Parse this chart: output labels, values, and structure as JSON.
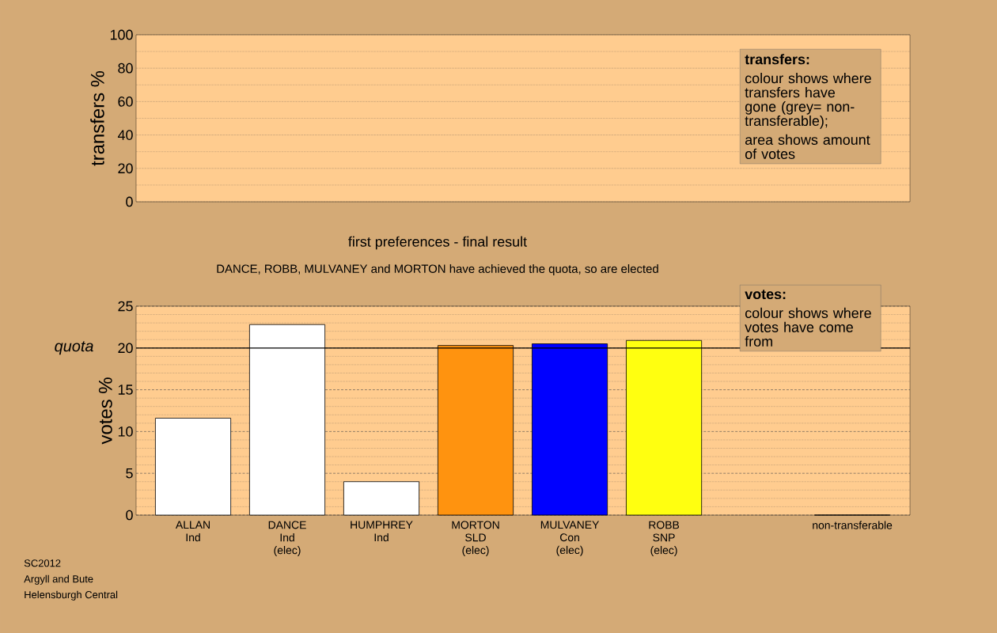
{
  "chart_data": [
    {
      "type": "bar",
      "categories": [
        null,
        null,
        null,
        null,
        null,
        null,
        null,
        null
      ],
      "values": [
        null,
        null,
        null,
        null,
        null,
        null,
        null,
        null
      ],
      "ylabel": "transfers %",
      "ylim": [
        0,
        100
      ],
      "yticks": [
        0,
        20,
        40,
        60,
        80,
        100
      ],
      "grid": "y",
      "tick_labels": "y",
      "annotations": [
        "transfers:",
        "colour shows where transfers have gone (grey= non-transferable);",
        "area shows amount of votes"
      ]
    },
    {
      "type": "bar",
      "title": "first preferences - final result",
      "subtitle": "DANCE, ROBB, MULVANEY and MORTON have achieved the quota, so are elected",
      "categories": [
        "ALLAN Ind",
        "DANCE Ind (elec)",
        "HUMPHREY Ind",
        "MORTON SLD (elec)",
        "MULVANEY Con (elec)",
        "ROBB SNP (elec)",
        null,
        "non-transferable"
      ],
      "values": [
        11.6,
        22.8,
        4.0,
        20.3,
        20.5,
        20.9,
        null,
        0
      ],
      "colors": [
        "#ffffff",
        "#ffffff",
        "#ffffff",
        "#ff930f",
        "#0000ff",
        "#ffff10",
        "#ffffff",
        "#ffffff"
      ],
      "ylabel": "votes %",
      "ylim": [
        0,
        25
      ],
      "yticks": [
        0,
        5,
        10,
        15,
        20,
        25
      ],
      "grid": "y",
      "ref_lines": [
        {
          "axis": "y",
          "value": 20,
          "label": "quota"
        }
      ],
      "annotations": [
        "votes:",
        "colour shows where votes have come from",
        "SC2012",
        "Argyll and Bute",
        "Helensburgh Central"
      ]
    }
  ]
}
